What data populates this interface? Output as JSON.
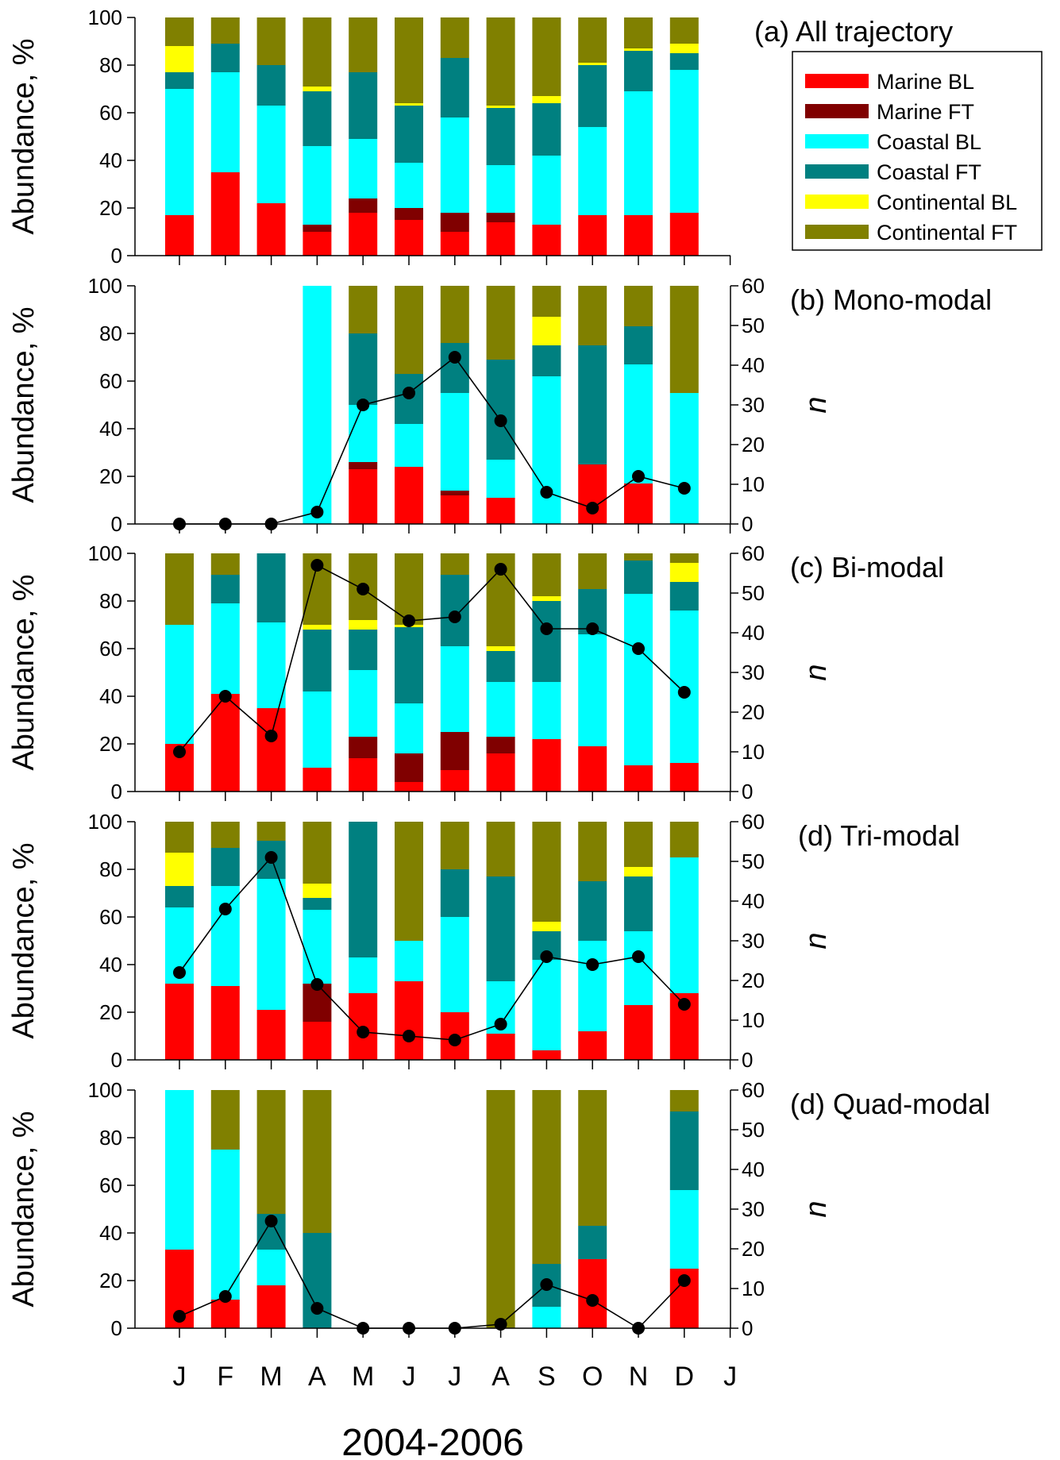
{
  "colors": {
    "Marine BL": "#ff0000",
    "Marine FT": "#800000",
    "Coastal BL": "#00ffff",
    "Coastal FT": "#008080",
    "Continental BL": "#ffff00",
    "Continental FT": "#808000",
    "line": "#000000"
  },
  "chart_data": [
    {
      "type": "bar",
      "stacked": true,
      "title": "(a) All trajectory",
      "ylabel": "Abundance, %",
      "ylim": [
        0,
        100
      ],
      "yticks": [
        0,
        20,
        40,
        60,
        80,
        100
      ],
      "categories": [
        "J",
        "F",
        "M",
        "A",
        "M",
        "J",
        "J",
        "A",
        "S",
        "O",
        "N",
        "D"
      ],
      "legend": {
        "position": "right",
        "entries": [
          "Marine BL",
          "Marine FT",
          "Coastal BL",
          "Coastal FT",
          "Continental BL",
          "Continental FT"
        ]
      },
      "series": [
        {
          "name": "Marine BL",
          "values": [
            17,
            35,
            22,
            10,
            18,
            15,
            10,
            14,
            13,
            17,
            17,
            18
          ]
        },
        {
          "name": "Marine FT",
          "values": [
            0,
            0,
            0,
            3,
            6,
            5,
            8,
            4,
            0,
            0,
            0,
            0
          ]
        },
        {
          "name": "Coastal BL",
          "values": [
            53,
            42,
            41,
            33,
            25,
            19,
            40,
            20,
            29,
            37,
            52,
            60
          ]
        },
        {
          "name": "Coastal FT",
          "values": [
            7,
            12,
            17,
            23,
            28,
            24,
            25,
            24,
            22,
            26,
            17,
            7
          ]
        },
        {
          "name": "Continental BL",
          "values": [
            11,
            0,
            0,
            2,
            0,
            1,
            0,
            1,
            3,
            1,
            1,
            4
          ]
        },
        {
          "name": "Continental FT",
          "values": [
            12,
            11,
            20,
            29,
            23,
            36,
            17,
            37,
            33,
            19,
            13,
            11
          ]
        }
      ]
    },
    {
      "type": "bar",
      "stacked": true,
      "title": "(b) Mono-modal",
      "ylabel": "Abundance, %",
      "y2label": "n",
      "ylim": [
        0,
        100
      ],
      "y2lim": [
        0,
        60
      ],
      "yticks": [
        0,
        20,
        40,
        60,
        80,
        100
      ],
      "y2ticks": [
        0,
        10,
        20,
        30,
        40,
        50,
        60
      ],
      "categories": [
        "J",
        "F",
        "M",
        "A",
        "M",
        "J",
        "J",
        "A",
        "S",
        "O",
        "N",
        "D"
      ],
      "series": [
        {
          "name": "Marine BL",
          "values": [
            0,
            0,
            0,
            0,
            23,
            24,
            12,
            11,
            0,
            25,
            17,
            0
          ]
        },
        {
          "name": "Marine FT",
          "values": [
            0,
            0,
            0,
            0,
            3,
            0,
            2,
            0,
            0,
            0,
            0,
            0
          ]
        },
        {
          "name": "Coastal BL",
          "values": [
            0,
            0,
            0,
            100,
            24,
            18,
            41,
            16,
            62,
            0,
            50,
            55
          ]
        },
        {
          "name": "Coastal FT",
          "values": [
            0,
            0,
            0,
            0,
            30,
            21,
            21,
            42,
            13,
            50,
            16,
            0
          ]
        },
        {
          "name": "Continental BL",
          "values": [
            0,
            0,
            0,
            0,
            0,
            0,
            0,
            0,
            12,
            0,
            0,
            0
          ]
        },
        {
          "name": "Continental FT",
          "values": [
            0,
            0,
            0,
            0,
            20,
            37,
            24,
            31,
            13,
            25,
            17,
            45
          ]
        }
      ],
      "n": [
        0,
        0,
        0,
        3,
        30,
        33,
        42,
        26,
        8,
        4,
        12,
        9
      ]
    },
    {
      "type": "bar",
      "stacked": true,
      "title": "(c) Bi-modal",
      "ylabel": "Abundance, %",
      "y2label": "n",
      "ylim": [
        0,
        100
      ],
      "y2lim": [
        0,
        60
      ],
      "yticks": [
        0,
        20,
        40,
        60,
        80,
        100
      ],
      "y2ticks": [
        0,
        10,
        20,
        30,
        40,
        50,
        60
      ],
      "categories": [
        "J",
        "F",
        "M",
        "A",
        "M",
        "J",
        "J",
        "A",
        "S",
        "O",
        "N",
        "D"
      ],
      "series": [
        {
          "name": "Marine BL",
          "values": [
            20,
            41,
            35,
            10,
            14,
            4,
            9,
            16,
            22,
            19,
            11,
            12
          ]
        },
        {
          "name": "Marine FT",
          "values": [
            0,
            0,
            0,
            0,
            9,
            12,
            16,
            7,
            0,
            0,
            0,
            0
          ]
        },
        {
          "name": "Coastal BL",
          "values": [
            50,
            38,
            36,
            32,
            28,
            21,
            36,
            23,
            24,
            47,
            72,
            64
          ]
        },
        {
          "name": "Coastal FT",
          "values": [
            0,
            12,
            29,
            26,
            17,
            32,
            30,
            13,
            34,
            19,
            14,
            12
          ]
        },
        {
          "name": "Continental BL",
          "values": [
            0,
            0,
            0,
            2,
            4,
            1,
            0,
            2,
            2,
            0,
            0,
            8
          ]
        },
        {
          "name": "Continental FT",
          "values": [
            30,
            9,
            0,
            30,
            28,
            30,
            9,
            39,
            18,
            15,
            3,
            4
          ]
        }
      ],
      "n": [
        10,
        24,
        14,
        57,
        51,
        43,
        44,
        56,
        41,
        41,
        36,
        25
      ]
    },
    {
      "type": "bar",
      "stacked": true,
      "title": "(d) Tri-modal",
      "ylabel": "Abundance, %",
      "y2label": "n",
      "ylim": [
        0,
        100
      ],
      "y2lim": [
        0,
        60
      ],
      "yticks": [
        0,
        20,
        40,
        60,
        80,
        100
      ],
      "y2ticks": [
        0,
        10,
        20,
        30,
        40,
        50,
        60
      ],
      "categories": [
        "J",
        "F",
        "M",
        "A",
        "M",
        "J",
        "J",
        "A",
        "S",
        "O",
        "N",
        "D"
      ],
      "series": [
        {
          "name": "Marine BL",
          "values": [
            32,
            31,
            21,
            16,
            28,
            33,
            20,
            11,
            4,
            12,
            23,
            28
          ]
        },
        {
          "name": "Marine FT",
          "values": [
            0,
            0,
            0,
            16,
            0,
            0,
            0,
            0,
            0,
            0,
            0,
            0
          ]
        },
        {
          "name": "Coastal BL",
          "values": [
            32,
            42,
            55,
            31,
            15,
            17,
            40,
            22,
            38,
            38,
            31,
            57
          ]
        },
        {
          "name": "Coastal FT",
          "values": [
            9,
            16,
            16,
            5,
            57,
            0,
            20,
            44,
            12,
            25,
            23,
            0
          ]
        },
        {
          "name": "Continental BL",
          "values": [
            14,
            0,
            0,
            6,
            0,
            0,
            0,
            0,
            4,
            0,
            4,
            0
          ]
        },
        {
          "name": "Continental FT",
          "values": [
            13,
            11,
            8,
            26,
            0,
            50,
            20,
            23,
            42,
            25,
            19,
            15
          ]
        }
      ],
      "n": [
        22,
        38,
        51,
        19,
        7,
        6,
        5,
        9,
        26,
        24,
        26,
        14
      ]
    },
    {
      "type": "bar",
      "stacked": true,
      "title": "(d) Quad-modal",
      "ylabel": "Abundance, %",
      "y2label": "n",
      "ylim": [
        0,
        100
      ],
      "y2lim": [
        0,
        60
      ],
      "yticks": [
        0,
        20,
        40,
        60,
        80,
        100
      ],
      "y2ticks": [
        0,
        10,
        20,
        30,
        40,
        50,
        60
      ],
      "categories": [
        "J",
        "F",
        "M",
        "A",
        "M",
        "J",
        "J",
        "A",
        "S",
        "O",
        "N",
        "D"
      ],
      "series": [
        {
          "name": "Marine BL",
          "values": [
            33,
            12,
            18,
            0,
            0,
            0,
            0,
            0,
            0,
            29,
            0,
            25
          ]
        },
        {
          "name": "Marine FT",
          "values": [
            0,
            0,
            0,
            0,
            0,
            0,
            0,
            0,
            0,
            0,
            0,
            0
          ]
        },
        {
          "name": "Coastal BL",
          "values": [
            67,
            63,
            15,
            0,
            0,
            0,
            0,
            0,
            9,
            0,
            0,
            33
          ]
        },
        {
          "name": "Coastal FT",
          "values": [
            0,
            0,
            15,
            40,
            0,
            0,
            0,
            0,
            18,
            14,
            0,
            33
          ]
        },
        {
          "name": "Continental BL",
          "values": [
            0,
            0,
            0,
            0,
            0,
            0,
            0,
            0,
            0,
            0,
            0,
            0
          ]
        },
        {
          "name": "Continental FT",
          "values": [
            0,
            25,
            52,
            60,
            0,
            0,
            0,
            100,
            73,
            57,
            0,
            9
          ]
        }
      ],
      "n": [
        3,
        8,
        27,
        5,
        0,
        0,
        0,
        1,
        11,
        7,
        0,
        12
      ]
    }
  ],
  "xaxis": {
    "ticklabels": [
      "J",
      "F",
      "M",
      "A",
      "M",
      "J",
      "J",
      "A",
      "S",
      "O",
      "N",
      "D",
      "J"
    ],
    "label": "2004-2006"
  }
}
